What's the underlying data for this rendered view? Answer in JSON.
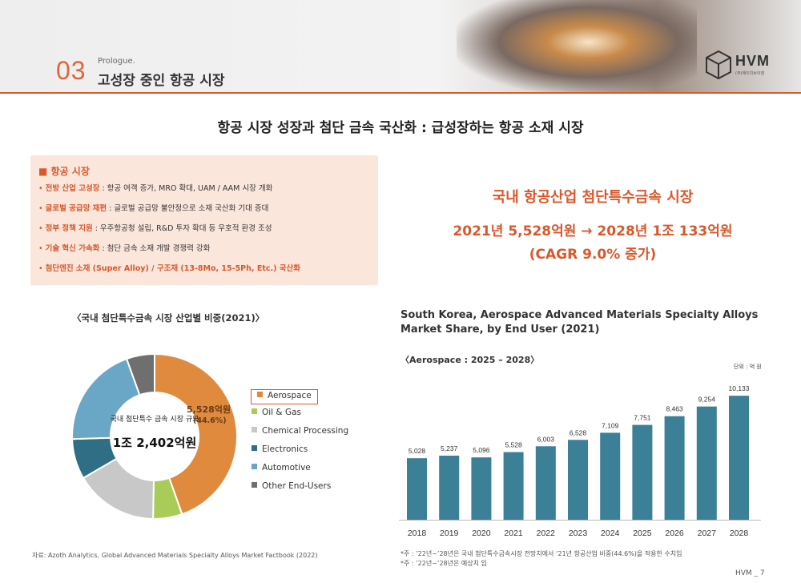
{
  "header": {
    "section_number": "03",
    "section_subtitle": "Prologue.",
    "section_title": "고성장 중인 항공 시장",
    "logo_text": "HVM",
    "logo_sub": "(주)에이치브이엠"
  },
  "headline": "항공 시장 성장과 첨단 금속 국산화 : 급성장하는 항공 소재 시장",
  "market_box": {
    "title": "■ 항공 시장",
    "items": [
      {
        "key": "전방 산업 고성장",
        "text": " : 항공 여객 증가, MRO 확대, UAM / AAM 시장 개화"
      },
      {
        "key": "글로벌 공급망 재편",
        "text": " : 글로벌 공급망 불안정으로 소재 국산화 기대 증대"
      },
      {
        "key": "정부 정책 지원",
        "text": " : 우주항공청 설립, R&D 투자 확대 등 우호적 환경 조성"
      },
      {
        "key": "기술 혁신 가속화",
        "text": " : 첨단 금속 소재 개발 경쟁력 강화"
      },
      {
        "key": "첨단엔진 소재 (Super Alloy) / 구조재 (13-8Mo, 15-5Ph, Etc.) 국산화",
        "text": ""
      }
    ]
  },
  "korea_market": {
    "line1": "국내 항공산업 첨단특수금속 시장",
    "line2": "2021년 5,528억원  →  2028년 1조 133억원",
    "line3": "(CAGR 9.0% 증가)"
  },
  "pie": {
    "title": "〈국내 첨단특수금속 시장 산업별 비중(2021)〉",
    "center_label": "국내 첨단특수 금속 시장 규모",
    "center_value": "1조 2,402억원",
    "slice_label": "5,528억원",
    "slice_pct": "(44.6%)"
  },
  "chart_data": [
    {
      "type": "pie",
      "title": "〈국내 첨단특수금속 시장 산업별 비중(2021)〉",
      "labels": [
        "Aerospace",
        "Oil & Gas",
        "Chemical Processing",
        "Electronics",
        "Automotive",
        "Other End-Users"
      ],
      "legend_labels": [
        "Aerospace",
        "Oil & Gas",
        "Chemical Processing",
        "Electronics",
        "Automotive",
        "Other End-Users"
      ],
      "values": [
        44.6,
        5.7,
        16.3,
        7.9,
        20.0,
        5.5
      ],
      "colors": [
        "#e08a3e",
        "#a9cc58",
        "#c8c8c8",
        "#2f6e84",
        "#6aa6c6",
        "#6f6f6f"
      ],
      "highlight": "Aerospace",
      "legend_position": "right"
    },
    {
      "type": "bar",
      "title": "South Korea, Aerospace Advanced Materials Specialty Alloys Market Share, by End User (2021)",
      "subtitle": "〈Aerospace : 2025 – 2028〉",
      "unit": "단위 : 억 원",
      "categories": [
        "2018",
        "2019",
        "2020",
        "2021",
        "2022",
        "2023",
        "2024",
        "2025",
        "2026",
        "2027",
        "2028"
      ],
      "values": [
        5028,
        5237,
        5096,
        5528,
        6003,
        6528,
        7109,
        7751,
        8463,
        9254,
        10133
      ],
      "value_labels": [
        "5,028",
        "5,237",
        "5,096",
        "5,528",
        "6,003",
        "6,528",
        "7,109",
        "7,751",
        "8,463",
        "9,254",
        "10,133"
      ],
      "color": "#3b8096",
      "ylim": [
        0,
        10800
      ]
    }
  ],
  "footer": {
    "source": "자료: Azoth Analytics, Global Advanced Materials Specialty Alloys Market Factbook (2022)",
    "note1": "*주 : ’22년~’28년은 국내 첨단특수금속시장 전망치에서 ‘21년 항공산업 비중(44.6%)을 적용한 수치임",
    "note2": "*주 : ’22년~’28년은 예상치 임",
    "page": "HVM _ 7"
  }
}
